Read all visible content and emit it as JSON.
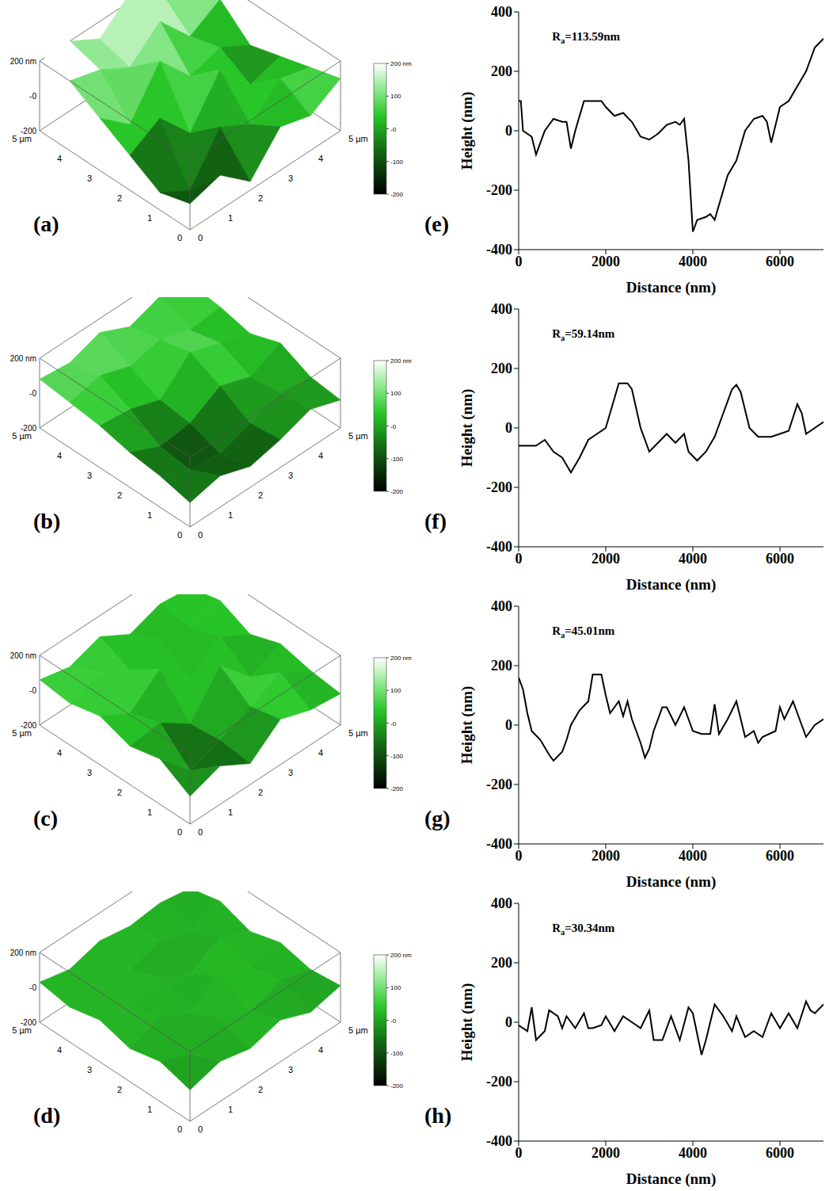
{
  "chart_data": [
    {
      "type": "surface",
      "label": "(a)",
      "xlim": [
        0,
        5
      ],
      "ylim": [
        0,
        5
      ],
      "zlim": [
        -200,
        200
      ],
      "grid_x": [
        0,
        1,
        2,
        3,
        4,
        5
      ],
      "grid_y": [
        0,
        1,
        2,
        3,
        4,
        5
      ],
      "xticks": [
        0,
        1,
        2,
        3,
        4,
        {
          "value": 5,
          "label": "5 µm"
        }
      ],
      "yticks": [
        0,
        1,
        2,
        3,
        4,
        {
          "value": 5,
          "label": "5 µm"
        }
      ],
      "zticks": [
        {
          "value": 200,
          "label": "200 nm"
        },
        {
          "value": 0,
          "label": "-0"
        },
        {
          "value": -200,
          "label": "-200"
        }
      ],
      "heights": [
        [
          -50,
          0,
          -150,
          50,
          0,
          100
        ],
        [
          -100,
          -200,
          50,
          -50,
          100,
          50
        ],
        [
          0,
          100,
          -100,
          150,
          -50,
          0
        ],
        [
          100,
          -50,
          200,
          0,
          50,
          -50
        ],
        [
          200,
          150,
          50,
          200,
          0,
          100
        ],
        [
          250,
          200,
          100,
          250,
          150,
          200
        ]
      ],
      "colorbar": {
        "range": [
          -200,
          200
        ],
        "ticks": [
          {
            "value": 200,
            "label": "200 nm"
          },
          100,
          {
            "value": 0,
            "label": "-0"
          },
          -100,
          -200
        ]
      }
    },
    {
      "type": "surface",
      "label": "(b)",
      "xlim": [
        0,
        5
      ],
      "ylim": [
        0,
        5
      ],
      "zlim": [
        -200,
        200
      ],
      "grid_x": [
        0,
        1,
        2,
        3,
        4,
        5
      ],
      "grid_y": [
        0,
        1,
        2,
        3,
        4,
        5
      ],
      "xticks": [
        0,
        1,
        2,
        3,
        4,
        {
          "value": 5,
          "label": "5 µm"
        }
      ],
      "yticks": [
        0,
        1,
        2,
        3,
        4,
        {
          "value": 5,
          "label": "5 µm"
        }
      ],
      "zticks": [
        {
          "value": 200,
          "label": "200 nm"
        },
        {
          "value": 0,
          "label": "-0"
        },
        {
          "value": -200,
          "label": "-200"
        }
      ],
      "heights": [
        [
          -60,
          -20,
          -80,
          -40,
          20,
          -40
        ],
        [
          -20,
          -100,
          -120,
          -60,
          0,
          -20
        ],
        [
          0,
          -80,
          -60,
          40,
          -20,
          60
        ],
        [
          40,
          20,
          -40,
          120,
          60,
          0
        ],
        [
          60,
          100,
          40,
          80,
          20,
          40
        ],
        [
          80,
          60,
          120,
          40,
          100,
          60
        ]
      ],
      "colorbar": {
        "range": [
          -200,
          200
        ],
        "ticks": [
          {
            "value": 200,
            "label": "200 nm"
          },
          100,
          {
            "value": 0,
            "label": "-0"
          },
          -100,
          -200
        ]
      }
    },
    {
      "type": "surface",
      "label": "(c)",
      "xlim": [
        0,
        5
      ],
      "ylim": [
        0,
        5
      ],
      "zlim": [
        -200,
        200
      ],
      "grid_x": [
        0,
        1,
        2,
        3,
        4,
        5
      ],
      "grid_y": [
        0,
        1,
        2,
        3,
        4,
        5
      ],
      "xticks": [
        0,
        1,
        2,
        3,
        4,
        {
          "value": 5,
          "label": "5 µm"
        }
      ],
      "yticks": [
        0,
        1,
        2,
        3,
        4,
        {
          "value": 5,
          "label": "5 µm"
        }
      ],
      "zticks": [
        {
          "value": 200,
          "label": "200 nm"
        },
        {
          "value": 0,
          "label": "-0"
        },
        {
          "value": -200,
          "label": "-200"
        }
      ],
      "heights": [
        [
          -40,
          20,
          -80,
          60,
          0,
          -20
        ],
        [
          60,
          -120,
          -60,
          20,
          100,
          0
        ],
        [
          20,
          40,
          -80,
          140,
          -40,
          40
        ],
        [
          80,
          -20,
          120,
          -60,
          80,
          -20
        ],
        [
          40,
          100,
          0,
          60,
          20,
          60
        ],
        [
          60,
          20,
          80,
          -20,
          40,
          20
        ]
      ],
      "colorbar": {
        "range": [
          -200,
          200
        ],
        "ticks": [
          {
            "value": 200,
            "label": "200 nm"
          },
          100,
          {
            "value": 0,
            "label": "-0"
          },
          -100,
          -200
        ]
      }
    },
    {
      "type": "surface",
      "label": "(d)",
      "xlim": [
        0,
        5
      ],
      "ylim": [
        0,
        5
      ],
      "zlim": [
        -200,
        200
      ],
      "grid_x": [
        0,
        1,
        2,
        3,
        4,
        5
      ],
      "grid_y": [
        0,
        1,
        2,
        3,
        4,
        5
      ],
      "xticks": [
        0,
        1,
        2,
        3,
        4,
        {
          "value": 5,
          "label": "5 µm"
        }
      ],
      "yticks": [
        0,
        1,
        2,
        3,
        4,
        {
          "value": 5,
          "label": "5 µm"
        }
      ],
      "zticks": [
        {
          "value": 200,
          "label": "200 nm"
        },
        {
          "value": 0,
          "label": "-0"
        },
        {
          "value": -200,
          "label": "-200"
        }
      ],
      "heights": [
        [
          -20,
          30,
          -10,
          40,
          -30,
          10
        ],
        [
          30,
          -40,
          50,
          -20,
          40,
          -10
        ],
        [
          -10,
          60,
          -30,
          70,
          0,
          30
        ],
        [
          40,
          -20,
          50,
          -40,
          60,
          -20
        ],
        [
          0,
          50,
          -10,
          40,
          -20,
          40
        ],
        [
          30,
          -10,
          40,
          10,
          30,
          0
        ]
      ],
      "colorbar": {
        "range": [
          -200,
          200
        ],
        "ticks": [
          {
            "value": 200,
            "label": "200 nm"
          },
          100,
          {
            "value": 0,
            "label": "-0"
          },
          -100,
          -200
        ]
      }
    },
    {
      "type": "line",
      "label": "(e)",
      "annotation": "Ra=113.59nm",
      "x_label": "Distance (nm)",
      "y_label": "Height (nm)",
      "color": "#000000",
      "xlim": [
        0,
        7000
      ],
      "ylim": [
        -400,
        400
      ],
      "xticks": [
        0,
        2000,
        4000,
        6000
      ],
      "yticks": [
        -400,
        -200,
        0,
        200,
        400
      ],
      "x": [
        0,
        50,
        100,
        300,
        400,
        600,
        800,
        1000,
        1100,
        1200,
        1300,
        1500,
        1700,
        1900,
        2000,
        2200,
        2400,
        2600,
        2800,
        3000,
        3200,
        3400,
        3600,
        3700,
        3800,
        3900,
        4000,
        4100,
        4300,
        4400,
        4500,
        4600,
        4800,
        5000,
        5200,
        5400,
        5600,
        5700,
        5800,
        6000,
        6200,
        6400,
        6600,
        6800,
        7000
      ],
      "values": [
        100,
        100,
        0,
        -20,
        -80,
        0,
        40,
        30,
        30,
        -60,
        0,
        100,
        100,
        100,
        80,
        50,
        60,
        30,
        -20,
        -30,
        -10,
        20,
        30,
        20,
        40,
        -100,
        -340,
        -300,
        -290,
        -280,
        -300,
        -250,
        -150,
        -100,
        0,
        40,
        50,
        30,
        -40,
        80,
        100,
        150,
        200,
        280,
        310
      ]
    },
    {
      "type": "line",
      "label": "(f)",
      "annotation": "Ra=59.14nm",
      "x_label": "Distance (nm)",
      "y_label": "Height (nm)",
      "color": "#000000",
      "xlim": [
        0,
        7000
      ],
      "ylim": [
        -400,
        400
      ],
      "xticks": [
        0,
        2000,
        4000,
        6000
      ],
      "yticks": [
        -400,
        -200,
        0,
        200,
        400
      ],
      "x": [
        0,
        400,
        600,
        800,
        1000,
        1200,
        1400,
        1600,
        1800,
        2000,
        2200,
        2300,
        2500,
        2600,
        2800,
        3000,
        3200,
        3400,
        3600,
        3800,
        3900,
        4100,
        4300,
        4500,
        4700,
        4900,
        5000,
        5100,
        5300,
        5500,
        5800,
        6000,
        6200,
        6400,
        6500,
        6600,
        6800,
        7000
      ],
      "values": [
        -60,
        -60,
        -40,
        -80,
        -100,
        -150,
        -100,
        -40,
        -20,
        0,
        100,
        150,
        150,
        130,
        0,
        -80,
        -50,
        -20,
        -50,
        -20,
        -80,
        -110,
        -80,
        -30,
        50,
        130,
        145,
        120,
        0,
        -30,
        -30,
        -20,
        -10,
        80,
        50,
        -20,
        0,
        20
      ]
    },
    {
      "type": "line",
      "label": "(g)",
      "annotation": "Ra=45.01nm",
      "x_label": "Distance (nm)",
      "y_label": "Height (nm)",
      "color": "#000000",
      "xlim": [
        0,
        7000
      ],
      "ylim": [
        -400,
        400
      ],
      "xticks": [
        0,
        2000,
        4000,
        6000
      ],
      "yticks": [
        -400,
        -200,
        0,
        200,
        400
      ],
      "x": [
        0,
        100,
        200,
        300,
        500,
        700,
        800,
        1000,
        1100,
        1200,
        1400,
        1600,
        1700,
        1900,
        2000,
        2100,
        2300,
        2400,
        2500,
        2600,
        2800,
        2900,
        3000,
        3100,
        3300,
        3400,
        3600,
        3800,
        3900,
        4000,
        4200,
        4400,
        4500,
        4600,
        4800,
        5000,
        5200,
        5400,
        5500,
        5600,
        5900,
        6000,
        6100,
        6300,
        6400,
        6500,
        6600,
        6800,
        7000
      ],
      "values": [
        160,
        120,
        40,
        -20,
        -50,
        -100,
        -120,
        -90,
        -50,
        0,
        50,
        80,
        170,
        170,
        100,
        40,
        80,
        30,
        80,
        20,
        -60,
        -110,
        -80,
        -20,
        60,
        60,
        0,
        60,
        20,
        -20,
        -30,
        -30,
        70,
        -30,
        20,
        80,
        -40,
        -20,
        -60,
        -40,
        -20,
        60,
        20,
        80,
        40,
        0,
        -40,
        0,
        20
      ]
    },
    {
      "type": "line",
      "label": "(h)",
      "annotation": "Ra=30.34nm",
      "x_label": "Distance (nm)",
      "y_label": "Height (nm)",
      "color": "#000000",
      "xlim": [
        0,
        7000
      ],
      "ylim": [
        -400,
        400
      ],
      "xticks": [
        0,
        2000,
        4000,
        6000
      ],
      "yticks": [
        -400,
        -200,
        0,
        200,
        400
      ],
      "x": [
        0,
        200,
        300,
        400,
        600,
        700,
        900,
        1000,
        1100,
        1300,
        1500,
        1600,
        1700,
        1900,
        2000,
        2200,
        2400,
        2600,
        2800,
        3000,
        3100,
        3300,
        3500,
        3700,
        3900,
        4000,
        4200,
        4300,
        4500,
        4700,
        4900,
        5000,
        5200,
        5400,
        5600,
        5800,
        6000,
        6200,
        6400,
        6600,
        6700,
        6800,
        7000
      ],
      "values": [
        -10,
        -30,
        50,
        -60,
        -30,
        40,
        20,
        -20,
        20,
        -20,
        30,
        -20,
        -20,
        -10,
        20,
        -30,
        20,
        0,
        -20,
        40,
        -60,
        -60,
        20,
        -60,
        50,
        30,
        -110,
        -60,
        60,
        20,
        -30,
        20,
        -50,
        -30,
        -50,
        30,
        -20,
        30,
        -20,
        70,
        40,
        30,
        60
      ]
    }
  ]
}
